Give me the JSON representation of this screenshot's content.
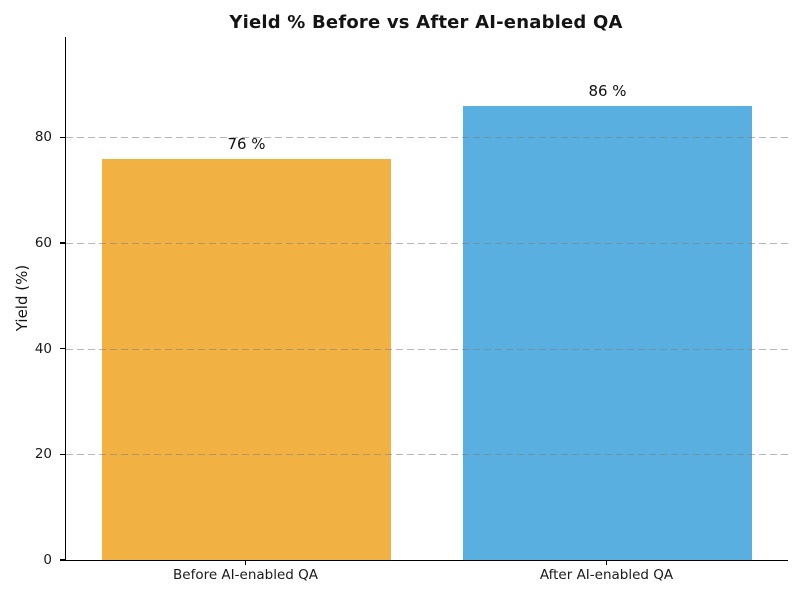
{
  "chart_data": {
    "type": "bar",
    "title": "Yield % Before vs After AI-enabled QA",
    "categories": [
      "Before AI-enabled QA",
      "After AI-enabled QA"
    ],
    "values": [
      76,
      86
    ],
    "value_labels": [
      "76 %",
      "86 %"
    ],
    "bar_colors": [
      "#F2B243",
      "#58AFE0"
    ],
    "xlabel": "",
    "ylabel": "Yield (%)",
    "ylim": [
      0,
      99
    ],
    "yticks": [
      0,
      20,
      40,
      60,
      80
    ],
    "grid": {
      "axis": "y",
      "style": "dashed",
      "drawn_over_bars": true
    },
    "legend": "none",
    "bar_width_fraction": 0.8
  }
}
